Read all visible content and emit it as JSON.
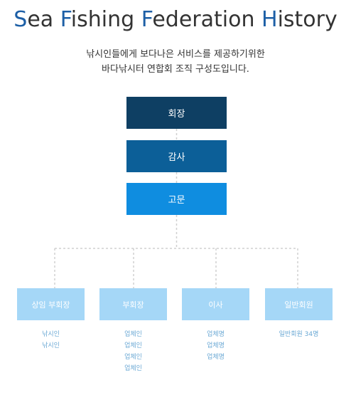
{
  "title": {
    "words": [
      {
        "cap": "S",
        "rest": "ea "
      },
      {
        "cap": "F",
        "rest": "ishing "
      },
      {
        "cap": "F",
        "rest": "ederation "
      },
      {
        "cap": "H",
        "rest": "istory"
      }
    ]
  },
  "description": {
    "line1": "낚시인들에게 보다나은 서비스를 제공하기위한",
    "line2": "바다낚시터 연합회 조직 구성도입니다."
  },
  "org": {
    "top": [
      {
        "label": "회장"
      },
      {
        "label": "감사"
      },
      {
        "label": "고문"
      }
    ],
    "departments": [
      {
        "label": "상임 부회장",
        "items": [
          "낚시인",
          "낚시인"
        ]
      },
      {
        "label": "부회장",
        "items": [
          "업체인",
          "업체인",
          "업체인",
          "업체인"
        ]
      },
      {
        "label": "이사",
        "items": [
          "업체명",
          "업체명",
          "업체명"
        ]
      },
      {
        "label": "일반회원",
        "items": [
          "일반회원 34명"
        ]
      }
    ]
  },
  "colors": {
    "title_accent": "#1d5fa6",
    "president": "#0e3f63",
    "auditor": "#0c5f98",
    "advisor": "#0f8de0",
    "department": "#a5d7f7",
    "sub_text": "#6aa8d4",
    "connector": "#d0d0d0"
  }
}
